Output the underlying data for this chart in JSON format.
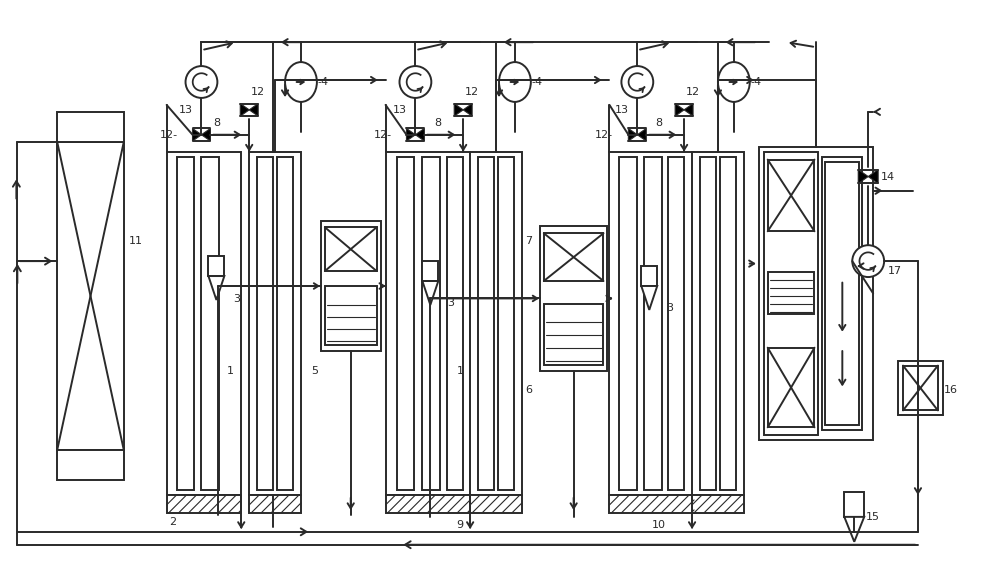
{
  "bg_color": "#ffffff",
  "line_color": "#2a2a2a",
  "line_width": 1.4,
  "fig_width": 10.0,
  "fig_height": 5.71,
  "dpi": 100
}
